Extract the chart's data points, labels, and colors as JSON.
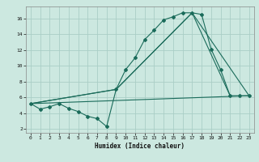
{
  "xlabel": "Humidex (Indice chaleur)",
  "ylabel": "",
  "bg_color": "#cce8e0",
  "grid_color": "#aacec6",
  "line_color": "#1a6b5a",
  "xlim": [
    -0.5,
    23.5
  ],
  "ylim": [
    1.5,
    17.5
  ],
  "xticks": [
    0,
    1,
    2,
    3,
    4,
    5,
    6,
    7,
    8,
    9,
    10,
    11,
    12,
    13,
    14,
    15,
    16,
    17,
    18,
    19,
    20,
    21,
    22,
    23
  ],
  "yticks": [
    2,
    4,
    6,
    8,
    10,
    12,
    14,
    16
  ],
  "line1_x": [
    0,
    1,
    2,
    3,
    4,
    5,
    6,
    7,
    8,
    9,
    10,
    11,
    12,
    13,
    14,
    15,
    16,
    17,
    18,
    19,
    20,
    21,
    22,
    23
  ],
  "line1_y": [
    5.2,
    4.5,
    4.8,
    5.2,
    4.6,
    4.2,
    3.6,
    3.3,
    2.3,
    7.0,
    9.5,
    11.0,
    13.3,
    14.5,
    15.8,
    16.2,
    16.7,
    16.7,
    16.5,
    12.1,
    9.5,
    6.2,
    6.2,
    6.2
  ],
  "line2_x": [
    0,
    9,
    17,
    21
  ],
  "line2_y": [
    5.2,
    7.0,
    16.7,
    6.2
  ],
  "line3_x": [
    0,
    9,
    17,
    23
  ],
  "line3_y": [
    5.2,
    7.0,
    16.7,
    6.2
  ],
  "line4_x": [
    0,
    23
  ],
  "line4_y": [
    5.2,
    6.2
  ]
}
